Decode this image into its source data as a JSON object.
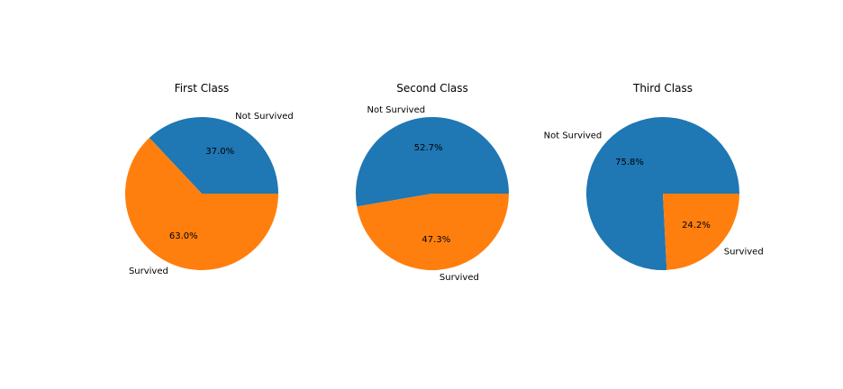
{
  "chart_data": [
    {
      "type": "pie",
      "title": "First Class",
      "labels": [
        "Not Survived",
        "Survived"
      ],
      "values": [
        37.0,
        63.0
      ],
      "autopct": [
        "37.0%",
        "63.0%"
      ],
      "colors": [
        "#1f77b4",
        "#ff7f0e"
      ]
    },
    {
      "type": "pie",
      "title": "Second Class",
      "labels": [
        "Not Survived",
        "Survived"
      ],
      "values": [
        52.7,
        47.3
      ],
      "autopct": [
        "52.7%",
        "47.3%"
      ],
      "colors": [
        "#1f77b4",
        "#ff7f0e"
      ]
    },
    {
      "type": "pie",
      "title": "Third Class",
      "labels": [
        "Not Survived",
        "Survived"
      ],
      "values": [
        75.8,
        24.2
      ],
      "autopct": [
        "75.8%",
        "24.2%"
      ],
      "colors": [
        "#1f77b4",
        "#ff7f0e"
      ]
    }
  ]
}
